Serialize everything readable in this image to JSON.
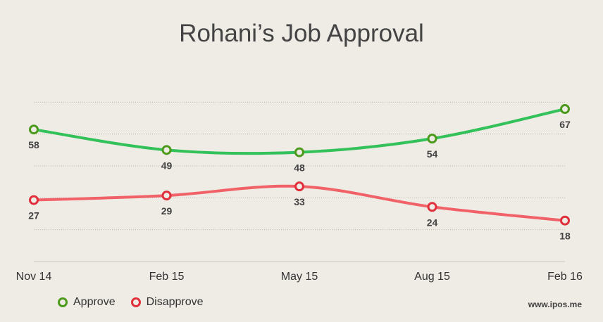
{
  "chart_data": {
    "type": "line",
    "title": "Rohani’s Job Approval",
    "categories": [
      "Nov 14",
      "Feb 15",
      "May 15",
      "Aug 15",
      "Feb 16"
    ],
    "series": [
      {
        "name": "Approve",
        "values": [
          58,
          49,
          48,
          54,
          67
        ],
        "color": "#33c15a",
        "marker_color": "#4c9a1c"
      },
      {
        "name": "Disapprove",
        "values": [
          27,
          29,
          33,
          24,
          18
        ],
        "color": "#f06268",
        "marker_color": "#e0303c"
      }
    ],
    "xlabel": "",
    "ylabel": "",
    "ylim": [
      0,
      84
    ],
    "grid": true,
    "legend": "bottom-left"
  },
  "source": "www.ipos.me"
}
